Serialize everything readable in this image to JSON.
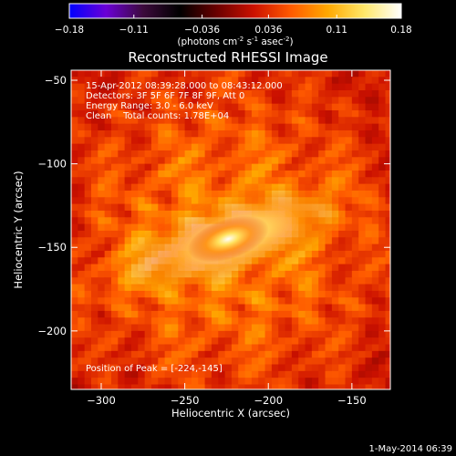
{
  "colorbar": {
    "ticks": [
      "-0.18",
      "-0.11",
      "-0.036",
      "0.036",
      "0.11",
      "0.18"
    ],
    "tick_values": [
      -0.18,
      -0.11,
      -0.036,
      0.036,
      0.11,
      0.18
    ],
    "range": [
      -0.18,
      0.18
    ],
    "unit_parts": {
      "open": "(photons cm",
      "exp1": "-2",
      "mid1": " s",
      "exp2": "-1",
      "mid2": " asec",
      "exp3": "-2",
      "close": ")"
    },
    "stops": [
      "#0000ff",
      "#6b00d6",
      "#3c0a3c",
      "#000000",
      "#6a0000",
      "#cc1100",
      "#ff5a00",
      "#ffa800",
      "#ffe86a",
      "#ffffff"
    ]
  },
  "chart_data": {
    "type": "heatmap",
    "title": "Reconstructed RHESSI Image",
    "xlabel": "Heliocentric X (arcsec)",
    "ylabel": "Heliocentric Y (arcsec)",
    "xlim": [
      -318,
      -127
    ],
    "ylim": [
      -235,
      -44
    ],
    "xticks": [
      -300,
      -250,
      -200,
      -150
    ],
    "yticks": [
      -50,
      -100,
      -150,
      -200
    ],
    "xtick_labels": [
      "−300",
      "−250",
      "−200",
      "−150"
    ],
    "ytick_labels": [
      "−50",
      "−100",
      "−150",
      "−200"
    ],
    "source_peak": {
      "x": -224,
      "y": -145,
      "intensity": 0.18
    },
    "source_elongation": {
      "angle_deg": 18,
      "sigma_major_arcsec": 36,
      "sigma_minor_arcsec": 10
    },
    "annotations": [
      "15-Apr-2012 08:39:28.000 to 08:43:12.000",
      "Detectors: 3F 5F 6F 7F 8F 9F, Att 0",
      "Energy Range: 3.0 - 6.0 keV",
      "Clean    Total counts: 1.78E+04"
    ],
    "peak_label": "Position of Peak = [-224,-145]"
  },
  "footer": {
    "date": "1-May-2014 06:39"
  }
}
